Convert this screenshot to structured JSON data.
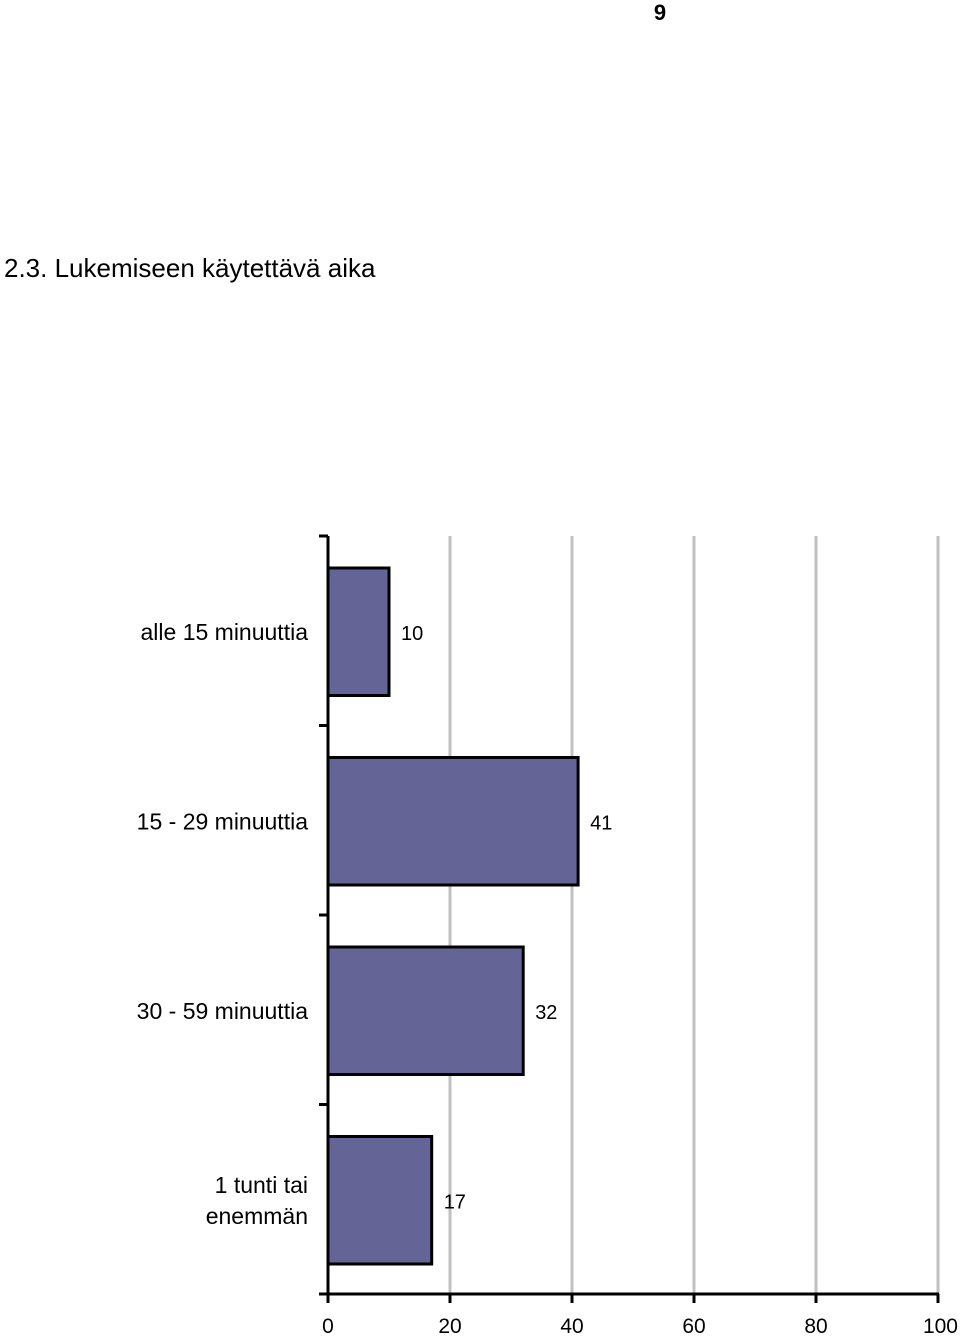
{
  "page": {
    "number": "9",
    "section_title": "2.3. Lukemiseen käytettävä aika"
  },
  "chart_data": {
    "type": "bar",
    "orientation": "horizontal",
    "categories": [
      [
        "alle 15 minuuttia"
      ],
      [
        "15 - 29 minuuttia"
      ],
      [
        "30 - 59 minuuttia"
      ],
      [
        "1 tunti tai",
        "enemmän"
      ]
    ],
    "values": [
      10,
      41,
      32,
      17
    ],
    "data_labels": [
      "10",
      "41",
      "32",
      "17"
    ],
    "xlim": [
      0,
      100
    ],
    "xticks": [
      0,
      20,
      40,
      60,
      80,
      100
    ],
    "grid": "vertical",
    "colors": {
      "bar_fill": "#646496",
      "bar_stroke": "#000000",
      "grid": "#c0c0c0",
      "axis": "#000000"
    }
  }
}
